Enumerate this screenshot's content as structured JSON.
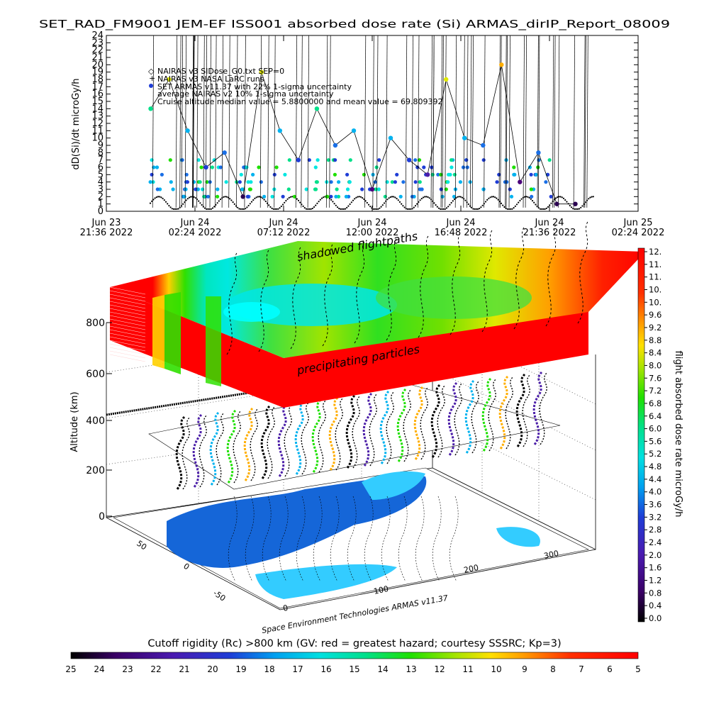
{
  "figure": {
    "title": "SET_RAD_FM9001  JEM-EF ISS001 absorbed dose rate (Si) ARMAS_dirIP_Report_08009",
    "credit": "Space Environment Technologies ARMAS v11.37"
  },
  "chart_data": [
    {
      "type": "scatter",
      "ylabel": "dD(Si)/dt microGy/h",
      "ylim": [
        0,
        24
      ],
      "yticks": [
        "0",
        "1",
        "2",
        "3",
        "4",
        "5",
        "6",
        "7",
        "8",
        "9",
        "10",
        "11",
        "12",
        "13",
        "14",
        "15",
        "16",
        "17",
        "18",
        "19",
        "20",
        "21",
        "22",
        "23",
        "24"
      ],
      "xticks": [
        {
          "line1": "Jun 23",
          "line2": "21:36 2022"
        },
        {
          "line1": "Jun 24",
          "line2": "02:24 2022"
        },
        {
          "line1": "Jun 24",
          "line2": "07:12 2022"
        },
        {
          "line1": "Jun 24",
          "line2": "12:00 2022"
        },
        {
          "line1": "Jun 24",
          "line2": "16:48 2022"
        },
        {
          "line1": "Jun 24",
          "line2": "21:36 2022"
        },
        {
          "line1": "Jun 25",
          "line2": "02:24 2022"
        }
      ],
      "legend": [
        "NAIRAS v3 SIDose_G0.txt SEP=0",
        "NAIRAS v3 NASA LaRC runs",
        "SET ARMAS v11.37 with 22% 1-sigma uncertainty",
        "average NAIRAS v2 10% 1-sigma uncertainty",
        "Cruise altitude median value = 5.8800000 and mean value = 69.809392"
      ],
      "series": [
        {
          "name": "SET ARMAS v11.37 with 22% 1-sigma uncertainty",
          "x": [
            "2022-06-24 00:00",
            "2022-06-24 01:00",
            "2022-06-24 02:00",
            "2022-06-24 03:00",
            "2022-06-24 04:00",
            "2022-06-24 05:00",
            "2022-06-24 06:00",
            "2022-06-24 07:00",
            "2022-06-24 08:00",
            "2022-06-24 09:00",
            "2022-06-24 10:00",
            "2022-06-24 11:00",
            "2022-06-24 12:00",
            "2022-06-24 13:00",
            "2022-06-24 14:00",
            "2022-06-24 15:00",
            "2022-06-24 16:00",
            "2022-06-24 17:00",
            "2022-06-24 18:00",
            "2022-06-24 19:00",
            "2022-06-24 20:00",
            "2022-06-24 21:00",
            "2022-06-24 22:00",
            "2022-06-24 23:00"
          ],
          "y": [
            14,
            18,
            11,
            6,
            8,
            2,
            19,
            11,
            7,
            14,
            9,
            11,
            3,
            10,
            7,
            5,
            18,
            10,
            9,
            20,
            4,
            8,
            1,
            1
          ]
        }
      ]
    },
    {
      "type": "scatter",
      "ylabel": "Altitude (km)",
      "zticks": [
        "0",
        "200",
        "400",
        "600",
        "800"
      ],
      "xticks": [
        "0",
        "100",
        "200",
        "300"
      ],
      "yticks": [
        "-50",
        "0",
        "50"
      ],
      "annotations": [
        "shadowed flightpaths",
        "precipitating particles"
      ]
    }
  ],
  "colorbar_right": {
    "label": "flight absorbed dose rate microGy/h",
    "ticks": [
      "12.",
      "11.",
      "11.",
      "10.",
      "10.",
      "9.6",
      "9.2",
      "8.8",
      "8.4",
      "8.0",
      "7.6",
      "7.2",
      "6.8",
      "6.4",
      "6.0",
      "5.6",
      "5.2",
      "4.8",
      "4.4",
      "4.0",
      "3.6",
      "3.2",
      "2.8",
      "2.4",
      "2.0",
      "1.6",
      "1.2",
      "0.8",
      "0.4",
      "0.0"
    ]
  },
  "colorbar_bottom": {
    "label": "Cutoff rigidity (Rc) >800 km (GV: red = greatest hazard; courtesy SSSRC; Kp=3)",
    "ticks": [
      "25",
      "24",
      "23",
      "22",
      "21",
      "20",
      "19",
      "18",
      "17",
      "16",
      "15",
      "14",
      "13",
      "12",
      "11",
      "10",
      "9",
      "8",
      "7",
      "6",
      "5"
    ]
  },
  "colors": {
    "jet": [
      "#000000",
      "#2a0050",
      "#4a007a",
      "#4b1ea8",
      "#1f3dd6",
      "#1a6fe6",
      "#00b2ef",
      "#00e6e0",
      "#00e08a",
      "#1ee000",
      "#7ee000",
      "#dfe800",
      "#ffae00",
      "#ff5a00",
      "#ff0000"
    ],
    "ocean": "#33ccff",
    "land": "#1566d8"
  }
}
